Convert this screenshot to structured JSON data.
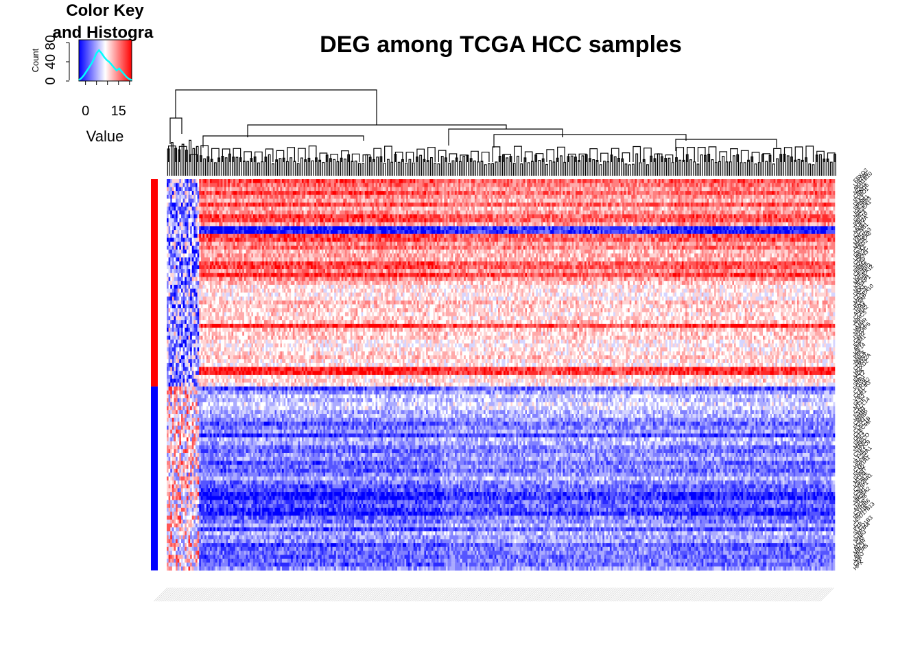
{
  "chart_data": {
    "type": "heatmap",
    "title": "DEG among TCGA HCC samples",
    "color_key": {
      "title_line1": "Color Key",
      "title_line2": "and Histogra",
      "ylabel": "Count",
      "yticks": [
        "0",
        "40",
        "80"
      ],
      "xlabel": "Value",
      "xticks": [
        "0",
        "15"
      ],
      "value_range": [
        -3,
        21
      ],
      "histogram": [
        2,
        6,
        12,
        20,
        28,
        36,
        46,
        58,
        64,
        58,
        50,
        44,
        40,
        34,
        28,
        22,
        26,
        20,
        14,
        8,
        4,
        2
      ],
      "colors": {
        "low": "#0000ff",
        "mid": "#ffffff",
        "high": "#ff0000",
        "histogram_line": "#00ffff"
      }
    },
    "n_samples": 371,
    "n_genes": 100,
    "row_groups": [
      {
        "group": "up",
        "color": "#ff0000",
        "rows": 53
      },
      {
        "group": "down",
        "color": "#0000ff",
        "rows": 47
      }
    ],
    "gene_labels": [
      "FBXO2",
      "LIN28B",
      "AKR1B10",
      "NQO1",
      "CRNDE",
      "ROBO1",
      "DLK1",
      "SPINK1",
      "IGF2BP3",
      "MAGEA1",
      "GPC3",
      "PEG10",
      "TOP2A",
      "MKI67",
      "CCNB1",
      "PRC1",
      "MAGEA3",
      "MAGEA6",
      "CTAG2",
      "GPX2",
      "UBE2C",
      "CDKN3",
      "SOX9",
      "RRM2",
      "CENPF",
      "IGF2BP2",
      "MAGEA12",
      "KIF20A",
      "NUSAP1",
      "DKK1",
      "CDC20",
      "MAGEA10",
      "PLVAP",
      "TPX2",
      "ASPM",
      "CCNA2",
      "BIRC5",
      "TTK",
      "HMMR",
      "NEK2",
      "DLGAP5",
      "CAP2",
      "ESM1",
      "AFP",
      "KIF14",
      "PBK",
      "MELK",
      "ZWINT",
      "CDKN2A",
      "HOXD2",
      "MDK",
      "ECT2",
      "SPP1",
      "FOSB",
      "CYP1A2",
      "CLEC4G",
      "VIPR1",
      "GLS2",
      "MT1F",
      "CXCL14",
      "ESR1",
      "HAMP",
      "CRHBP",
      "FCN3",
      "CLEC1B",
      "CLEC4M",
      "OIT3",
      "GDF2",
      "MARCO",
      "STAB2",
      "CYP2C9",
      "LYVE1",
      "SLC22A1",
      "HGFAC",
      "CYP1A1",
      "FCN2",
      "GNMT",
      "MT1M",
      "IGFALS",
      "CYP26A1",
      "CNDP1",
      "ECM1",
      "SRD5A2",
      "TTC36",
      "APOF",
      "CYP2B6",
      "RDH16",
      "HSD17B13",
      "C7",
      "PZP",
      "SLCO1B3",
      "CYP3A4",
      "SHBG",
      "LCAT",
      "ADH4",
      "MBL2",
      "APOA5",
      "KMO",
      "CFP",
      "HPX"
    ]
  }
}
